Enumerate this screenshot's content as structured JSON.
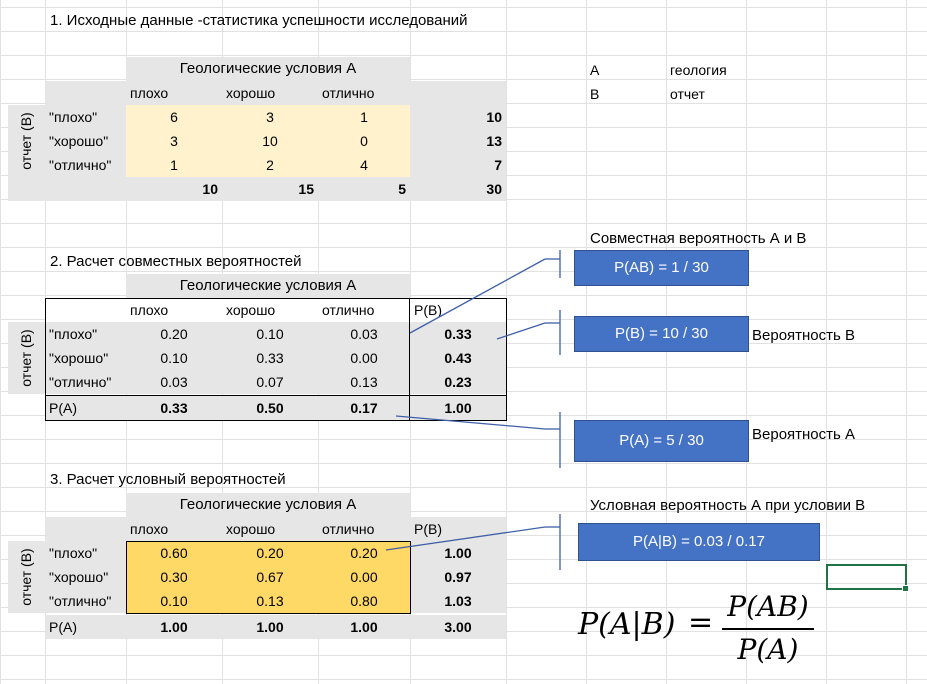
{
  "titles": {
    "t1": "1. Исходные данные -статистика успешности исследований",
    "t2": "2. Расчет совместных вероятностей",
    "t3": "3. Расчет условный вероятностей"
  },
  "legend": {
    "a_key": "A",
    "a_val": "геология",
    "b_key": "B",
    "b_val": "отчет"
  },
  "common": {
    "header": "Геологические условия А",
    "vlabel": "отчет (В)",
    "cols": [
      "плохо",
      "хорошо",
      "отлично"
    ],
    "rows": [
      "\"плохо\"",
      "\"хорошо\"",
      "\"отлично\""
    ]
  },
  "table1": {
    "cells": [
      [
        "6",
        "3",
        "1"
      ],
      [
        "3",
        "10",
        "0"
      ],
      [
        "1",
        "2",
        "4"
      ]
    ],
    "row_totals": [
      "10",
      "13",
      "7"
    ],
    "col_totals": [
      "10",
      "15",
      "5"
    ],
    "grand_total": "30"
  },
  "table2": {
    "pb_header": "P(B)",
    "pa_label": "P(A)",
    "cells": [
      [
        "0.20",
        "0.10",
        "0.03"
      ],
      [
        "0.10",
        "0.33",
        "0.00"
      ],
      [
        "0.03",
        "0.07",
        "0.13"
      ]
    ],
    "row_totals": [
      "0.33",
      "0.43",
      "0.23"
    ],
    "col_totals": [
      "0.33",
      "0.50",
      "0.17"
    ],
    "grand_total": "1.00"
  },
  "table3": {
    "pb_header": "P(B)",
    "pa_label": "P(A)",
    "cells": [
      [
        "0.60",
        "0.20",
        "0.20"
      ],
      [
        "0.30",
        "0.67",
        "0.00"
      ],
      [
        "0.10",
        "0.13",
        "0.80"
      ]
    ],
    "row_totals": [
      "1.00",
      "0.97",
      "1.03"
    ],
    "col_totals": [
      "1.00",
      "1.00",
      "1.00"
    ],
    "grand_total": "3.00"
  },
  "annotations": {
    "joint_label": "Совместная вероятность А и В",
    "joint_box": "P(AB) = 1 / 30",
    "pb_box": "P(B) = 10 / 30",
    "pb_label": "Вероятность В",
    "pa_box": "P(A) = 5 / 30",
    "pa_label": "Вероятность А",
    "cond_label": "Условная вероятность А при условии В",
    "cond_box": "P(A|B) = 0.03 / 0.17"
  },
  "formula": {
    "lhs": "P(A|B)",
    "eq": "=",
    "numerator": "P(AB)",
    "denominator": "P(A)"
  },
  "colors": {
    "box_blue": "#4472c4",
    "pale_yellow": "#fff2cc",
    "gold": "#ffd966",
    "header_grey": "#e6e6e6",
    "selection_green": "#217346"
  }
}
